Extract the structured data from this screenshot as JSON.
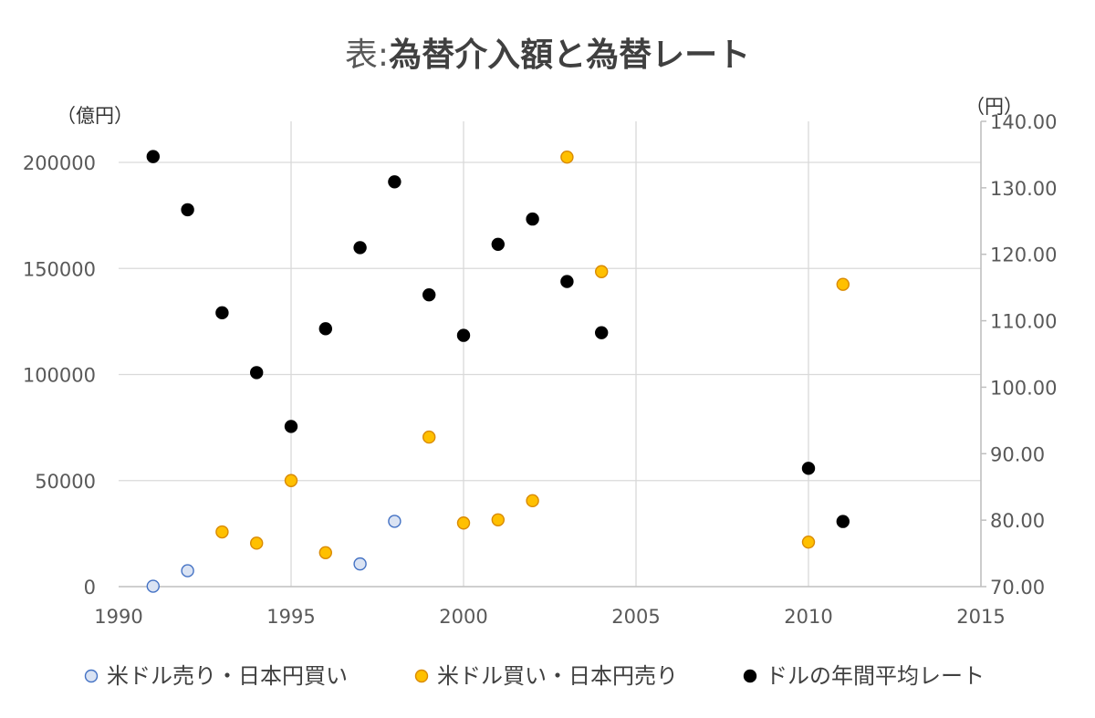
{
  "chart_data": {
    "type": "scatter",
    "title_prefix": "表:",
    "title": "為替介入額と為替レート",
    "ylabel_left": "（億円）",
    "ylabel_right": "（円）",
    "xlim": [
      1990,
      2015
    ],
    "x_ticks": [
      1990,
      1995,
      2000,
      2005,
      2010,
      2015
    ],
    "ylim_left": [
      0,
      220000
    ],
    "y_left_ticks": [
      0,
      50000,
      100000,
      150000,
      200000
    ],
    "ylim_right": [
      70,
      140
    ],
    "y_right_ticks": [
      "70.00",
      "80.00",
      "90.00",
      "100.00",
      "110.00",
      "120.00",
      "130.00",
      "140.00"
    ],
    "grid": true,
    "legend_position": "bottom",
    "series": [
      {
        "name": "米ドル売り・日本円買い",
        "axis": "left",
        "color": "#dae3f3",
        "stroke": "#4472c4",
        "points": [
          [
            1991,
            200
          ],
          [
            1992,
            7500
          ],
          [
            1997,
            10700
          ],
          [
            1998,
            30800
          ]
        ]
      },
      {
        "name": "米ドル買い・日本円売り",
        "axis": "left",
        "color": "#ffc000",
        "stroke": "#d98a00",
        "points": [
          [
            1993,
            25800
          ],
          [
            1994,
            20500
          ],
          [
            1995,
            50000
          ],
          [
            1996,
            16000
          ],
          [
            1999,
            70500
          ],
          [
            2000,
            30000
          ],
          [
            2001,
            31500
          ],
          [
            2002,
            40500
          ],
          [
            2003,
            202500
          ],
          [
            2004,
            148500
          ],
          [
            2010,
            21000
          ],
          [
            2011,
            142500
          ]
        ]
      },
      {
        "name": "ドルの年間平均レート",
        "axis": "right",
        "color": "#000000",
        "stroke": "#000000",
        "points": [
          [
            1991,
            134.7
          ],
          [
            1992,
            126.7
          ],
          [
            1993,
            111.2
          ],
          [
            1994,
            102.2
          ],
          [
            1995,
            94.1
          ],
          [
            1996,
            108.8
          ],
          [
            1997,
            121.0
          ],
          [
            1998,
            130.9
          ],
          [
            1999,
            113.9
          ],
          [
            2000,
            107.8
          ],
          [
            2001,
            121.5
          ],
          [
            2002,
            125.3
          ],
          [
            2003,
            115.9
          ],
          [
            2004,
            108.2
          ],
          [
            2010,
            87.8
          ],
          [
            2011,
            79.8
          ]
        ]
      }
    ]
  }
}
